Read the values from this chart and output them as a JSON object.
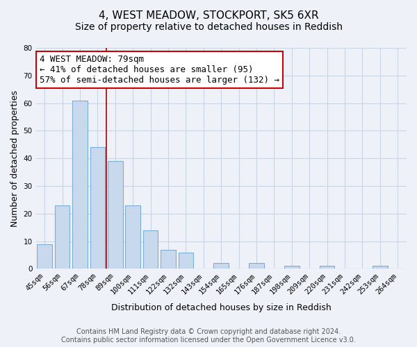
{
  "title": "4, WEST MEADOW, STOCKPORT, SK5 6XR",
  "subtitle": "Size of property relative to detached houses in Reddish",
  "xlabel": "Distribution of detached houses by size in Reddish",
  "ylabel": "Number of detached properties",
  "bar_color": "#c8d9ee",
  "bar_edge_color": "#7aaed4",
  "background_color": "#eef2f8",
  "categories": [
    "45sqm",
    "56sqm",
    "67sqm",
    "78sqm",
    "89sqm",
    "100sqm",
    "111sqm",
    "122sqm",
    "132sqm",
    "143sqm",
    "154sqm",
    "165sqm",
    "176sqm",
    "187sqm",
    "198sqm",
    "209sqm",
    "220sqm",
    "231sqm",
    "242sqm",
    "253sqm",
    "264sqm"
  ],
  "values": [
    9,
    23,
    61,
    44,
    39,
    23,
    14,
    7,
    6,
    0,
    2,
    0,
    2,
    0,
    1,
    0,
    1,
    0,
    0,
    1,
    0
  ],
  "ylim": [
    0,
    80
  ],
  "yticks": [
    0,
    10,
    20,
    30,
    40,
    50,
    60,
    70,
    80
  ],
  "annotation_title": "4 WEST MEADOW: 79sqm",
  "annotation_line1": "← 41% of detached houses are smaller (95)",
  "annotation_line2": "57% of semi-detached houses are larger (132) →",
  "annotation_box_color": "#ffffff",
  "annotation_box_edge": "#cc0000",
  "vline_color": "#aa0000",
  "vline_position": 3.5,
  "footer_line1": "Contains HM Land Registry data © Crown copyright and database right 2024.",
  "footer_line2": "Contains public sector information licensed under the Open Government Licence v3.0.",
  "grid_color": "#c8d4e8",
  "title_fontsize": 11,
  "subtitle_fontsize": 10,
  "xlabel_fontsize": 9,
  "ylabel_fontsize": 9,
  "tick_fontsize": 7.5,
  "annotation_fontsize": 9,
  "footer_fontsize": 7
}
